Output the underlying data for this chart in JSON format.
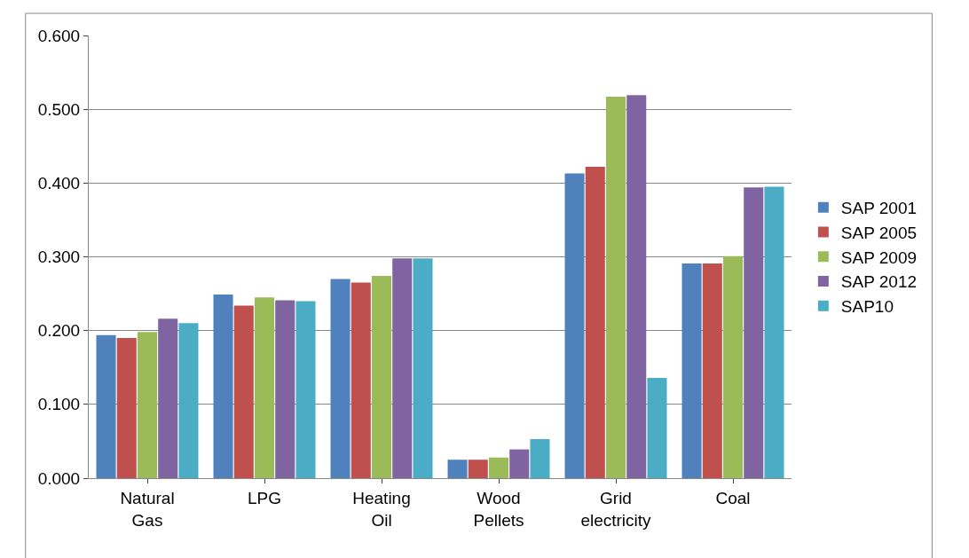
{
  "chart_data": {
    "type": "bar",
    "categories": [
      "Natural\nGas",
      "LPG",
      "Heating\nOil",
      "Wood\nPellets",
      "Grid\nelectricity",
      "Coal"
    ],
    "series": [
      {
        "name": "SAP 2001",
        "color": "#4f81bd",
        "values": [
          0.194,
          0.249,
          0.27,
          0.025,
          0.413,
          0.291
        ]
      },
      {
        "name": "SAP 2005",
        "color": "#c0504d",
        "values": [
          0.19,
          0.234,
          0.265,
          0.025,
          0.422,
          0.291
        ]
      },
      {
        "name": "SAP 2009",
        "color": "#9bbb59",
        "values": [
          0.198,
          0.245,
          0.274,
          0.028,
          0.517,
          0.301
        ]
      },
      {
        "name": "SAP 2012",
        "color": "#8064a2",
        "values": [
          0.216,
          0.241,
          0.298,
          0.039,
          0.519,
          0.394
        ]
      },
      {
        "name": "SAP10",
        "color": "#4bacc6",
        "values": [
          0.21,
          0.24,
          0.298,
          0.053,
          0.136,
          0.395
        ]
      }
    ],
    "ylim": [
      0,
      0.6
    ],
    "yticks": [
      {
        "value": 0,
        "label": "0.000"
      },
      {
        "value": 0.1,
        "label": "0.100"
      },
      {
        "value": 0.2,
        "label": "0.200"
      },
      {
        "value": 0.3,
        "label": "0.300"
      },
      {
        "value": 0.4,
        "label": "0.400"
      },
      {
        "value": 0.5,
        "label": "0.500"
      },
      {
        "value": 0.6,
        "label": "0.600"
      }
    ],
    "grid": "y",
    "legend": "right"
  }
}
